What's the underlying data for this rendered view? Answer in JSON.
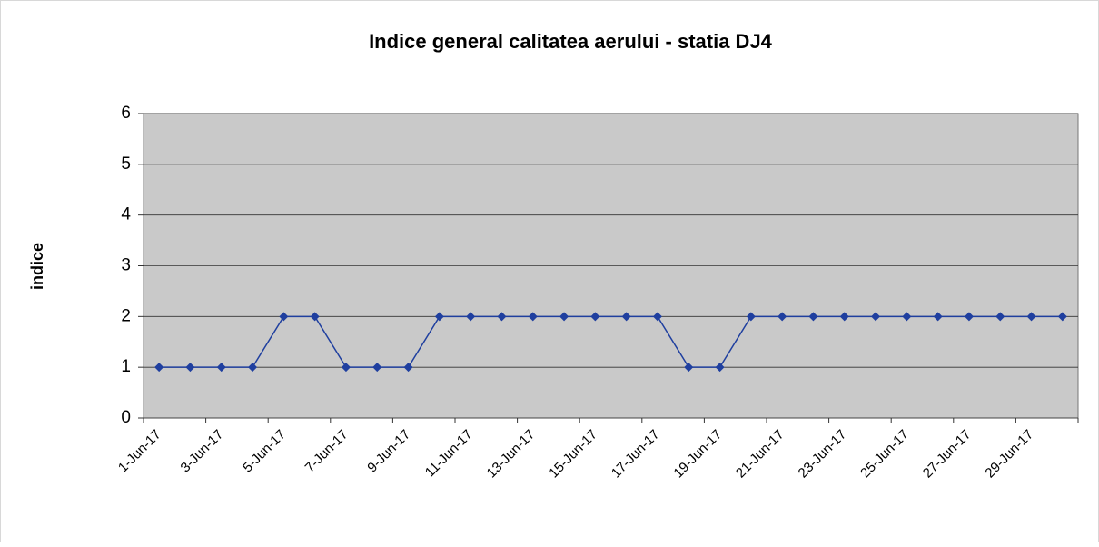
{
  "chart_data": {
    "type": "line",
    "title": "Indice general calitatea aerului -  statia DJ4",
    "y_label": "indice",
    "categories": [
      "1-Jun-17",
      null,
      "3-Jun-17",
      null,
      "5-Jun-17",
      null,
      "7-Jun-17",
      null,
      "9-Jun-17",
      null,
      "11-Jun-17",
      null,
      "13-Jun-17",
      null,
      "15-Jun-17",
      null,
      "17-Jun-17",
      null,
      "19-Jun-17",
      null,
      "21-Jun-17",
      null,
      "23-Jun-17",
      null,
      "25-Jun-17",
      null,
      "27-Jun-17",
      null,
      "29-Jun-17",
      null
    ],
    "values": [
      1,
      1,
      1,
      1,
      2,
      2,
      1,
      1,
      1,
      2,
      2,
      2,
      2,
      2,
      2,
      2,
      2,
      1,
      1,
      2,
      2,
      2,
      2,
      2,
      2,
      2,
      2,
      2,
      2,
      2
    ],
    "color": "#1f3f9f",
    "ylim": [
      0,
      6
    ],
    "yticks": [
      0,
      1,
      2,
      3,
      4,
      5,
      6
    ],
    "grid": true
  }
}
